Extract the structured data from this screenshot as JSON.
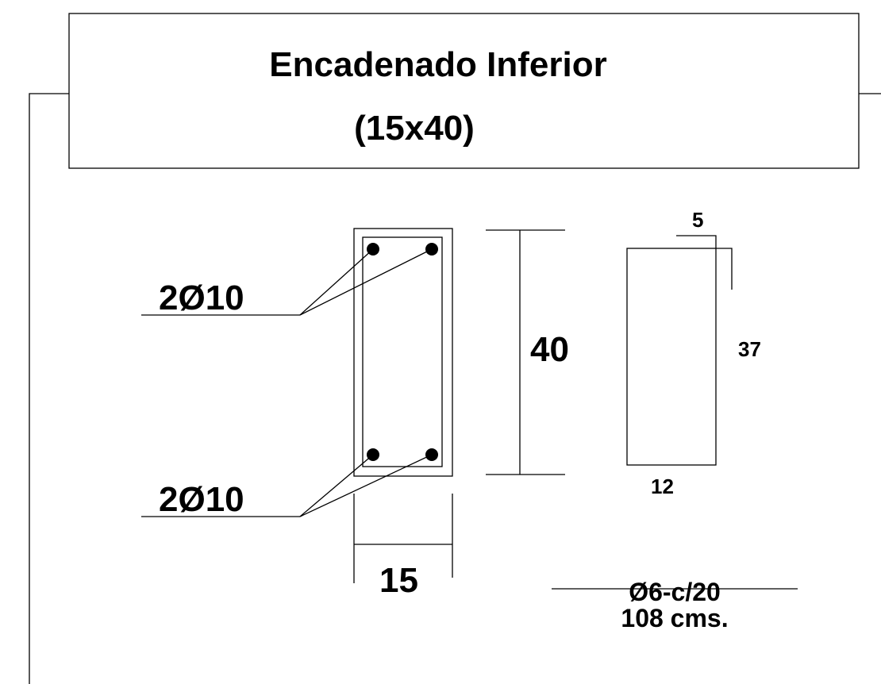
{
  "header": {
    "title": "Encadenado Inferior",
    "subtitle": "(15x40)"
  },
  "section": {
    "top_bars": "2Ø10",
    "bottom_bars": "2Ø10",
    "height": "40",
    "width": "15"
  },
  "stirrup": {
    "hook": "5",
    "height": "37",
    "width": "12",
    "spec": "Ø6-c/20",
    "length": "108 cms."
  }
}
